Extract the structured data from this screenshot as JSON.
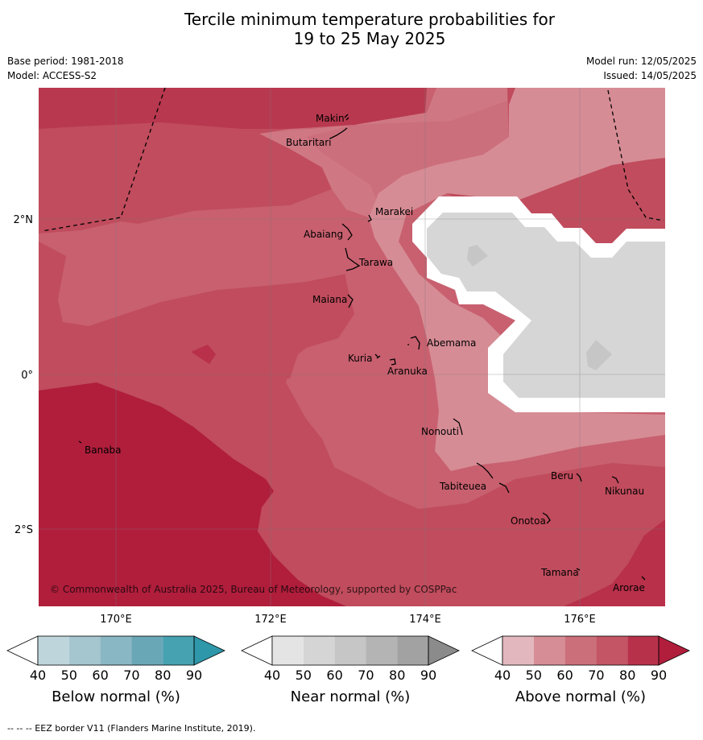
{
  "title_line1": "Tercile minimum temperature probabilities for",
  "title_line2": "19 to 25 May 2025",
  "base_period": "Base period: 1981-2018",
  "model": "Model: ACCESS-S2",
  "model_run": "Model run: 12/05/2025",
  "issued": "Issued: 14/05/2025",
  "copyright": "© Commonwealth of Australia 2025, Bureau of Meteorology, supported by COSPPac",
  "footer": "--  --  -- EEZ border V11 (Flanders Marine Institute, 2019).",
  "lat_ticks": [
    "2°N",
    "0°",
    "2°S"
  ],
  "lon_ticks": [
    "170°E",
    "172°E",
    "174°E",
    "176°E"
  ],
  "places": {
    "makin": "Makin",
    "butaritari": "Butaritari",
    "marakei": "Marakei",
    "abaiang": "Abaiang",
    "tarawa": "Tarawa",
    "maiana": "Maiana",
    "abemama": "Abemama",
    "kuria": "Kuria",
    "aranuka": "Aranuka",
    "nonouti": "Nonouti",
    "banaba": "Banaba",
    "tabiteuea": "Tabiteuea",
    "beru": "Beru",
    "nikunau": "Nikunau",
    "onotoa": "Onotoa",
    "tamana": "Tamana",
    "arorae": "Arorae"
  },
  "colorbars": {
    "ticks": [
      "40",
      "50",
      "60",
      "70",
      "80",
      "90"
    ],
    "below": {
      "label": "Below normal (%)",
      "colors": [
        "#ffffff",
        "#bfd5dc",
        "#a5c6cf",
        "#89b7c3",
        "#6aa7b6",
        "#46a1b1",
        "#2e97aa"
      ]
    },
    "near": {
      "label": "Near normal (%)",
      "colors": [
        "#ffffff",
        "#e4e4e4",
        "#d5d5d5",
        "#c6c6c6",
        "#b4b4b4",
        "#a2a2a2",
        "#8b8b8b"
      ]
    },
    "above": {
      "label": "Above normal (%)",
      "colors": [
        "#ffffff",
        "#e2b8be",
        "#d68d96",
        "#cb6f7b",
        "#c35564",
        "#b8314b",
        "#b01e3c"
      ]
    }
  }
}
